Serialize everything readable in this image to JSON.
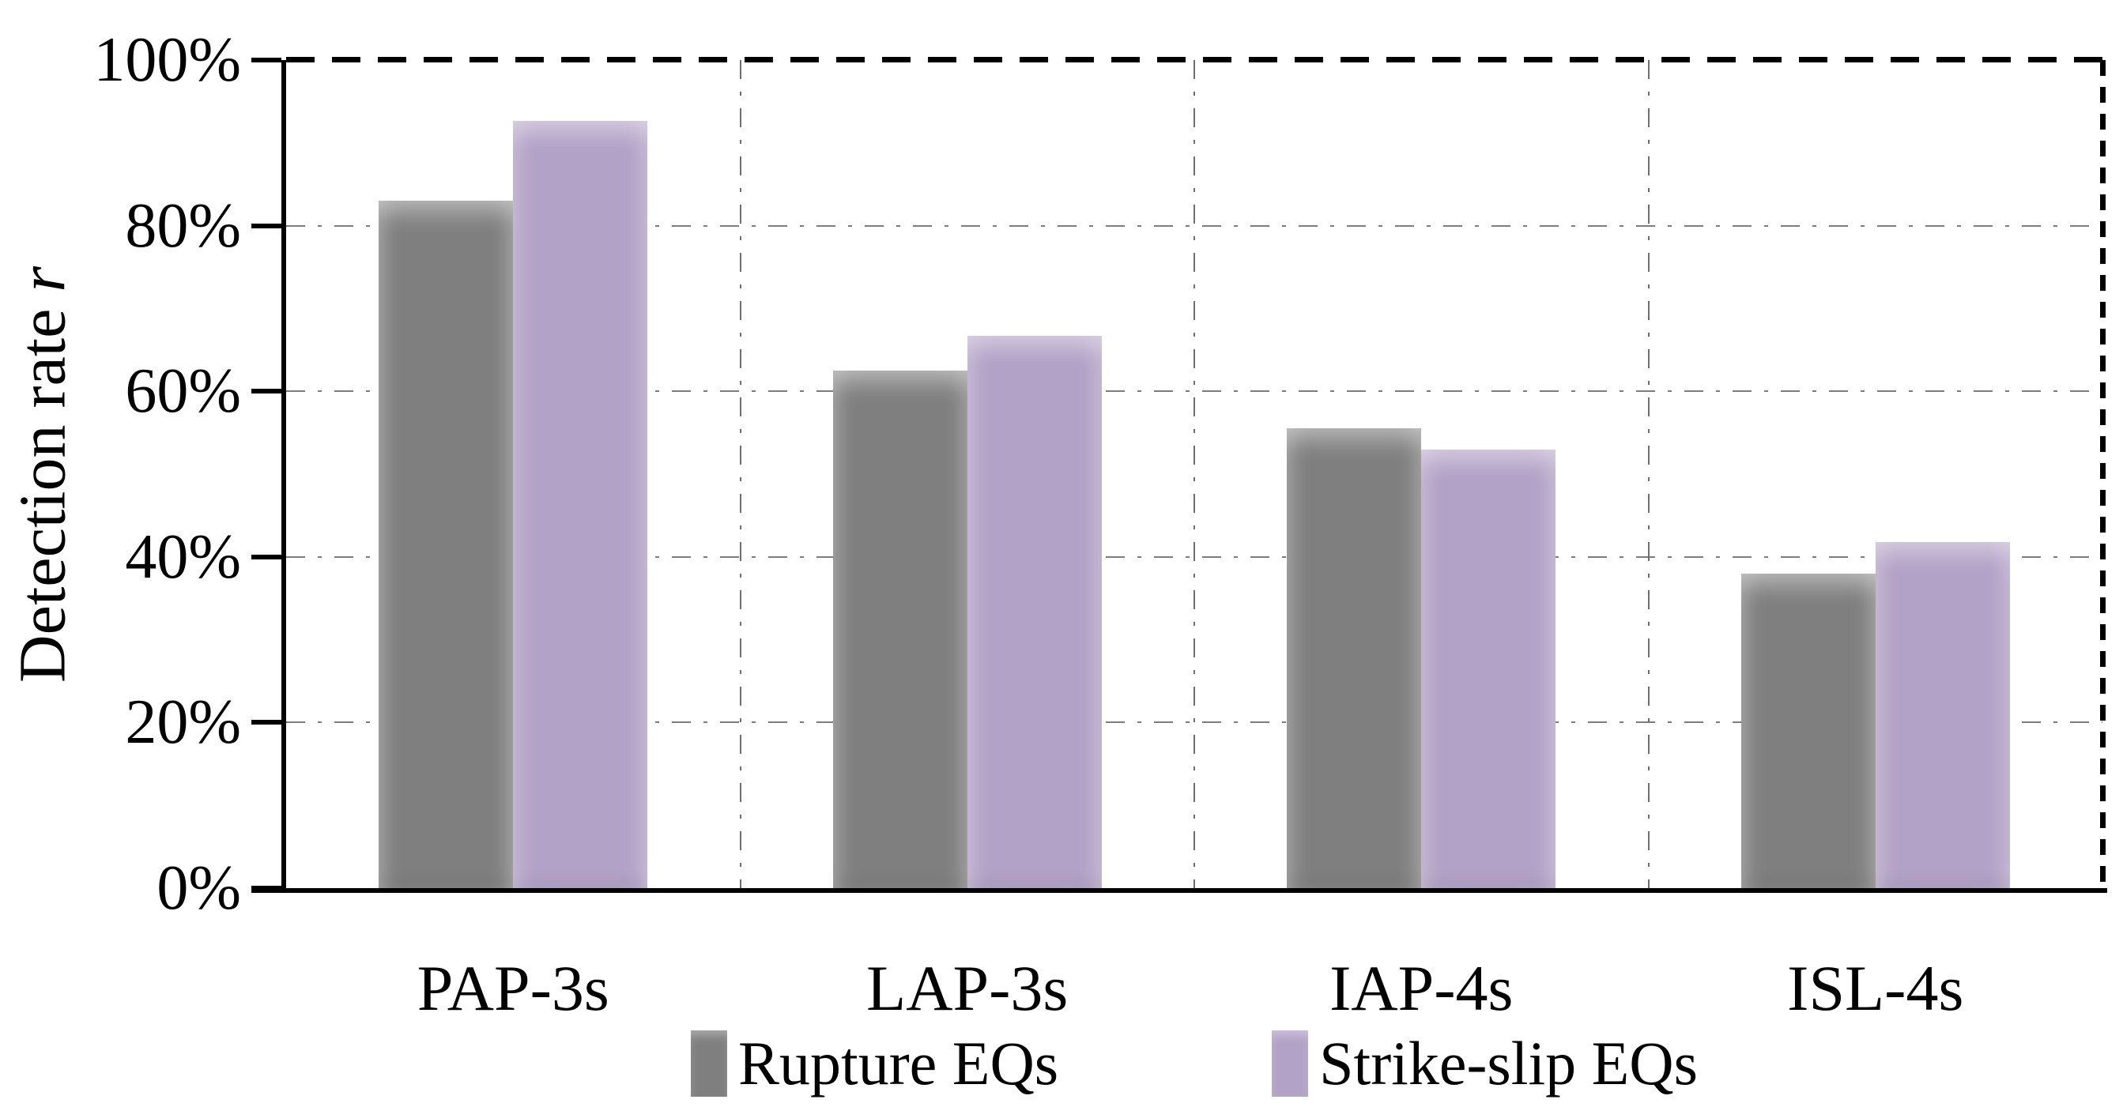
{
  "figure": {
    "background": "#ffffff",
    "text_color": "#000000"
  },
  "chart_data": {
    "type": "bar",
    "title": "",
    "ylabel_text": "Detection rate",
    "ylabel_symbol": "r",
    "xlabel": "",
    "categories": [
      "PAP-3s",
      "LAP-3s",
      "IAP-4s",
      "ISL-4s"
    ],
    "series": [
      {
        "name": "Rupture EQs",
        "color": "#7f7f7f",
        "values": [
          83,
          62.5,
          55.5,
          38
        ]
      },
      {
        "name": "Strike-slip EQs",
        "color": "#b3a2c7",
        "values": [
          92.7,
          66.7,
          53,
          41.8
        ]
      }
    ],
    "y_axis": {
      "min": 0,
      "max": 100,
      "step": 20,
      "tick_labels": [
        "0%",
        "20%",
        "40%",
        "60%",
        "80%",
        "100%"
      ]
    },
    "grid": {
      "horizontal": "dash-dot",
      "vertical": "dash-dot",
      "color": "#7d7d7d"
    },
    "frame": {
      "left": "solid",
      "bottom": "solid",
      "top": "dashed",
      "right": "dashed",
      "color": "#000000"
    },
    "legend_position": "bottom-center"
  }
}
